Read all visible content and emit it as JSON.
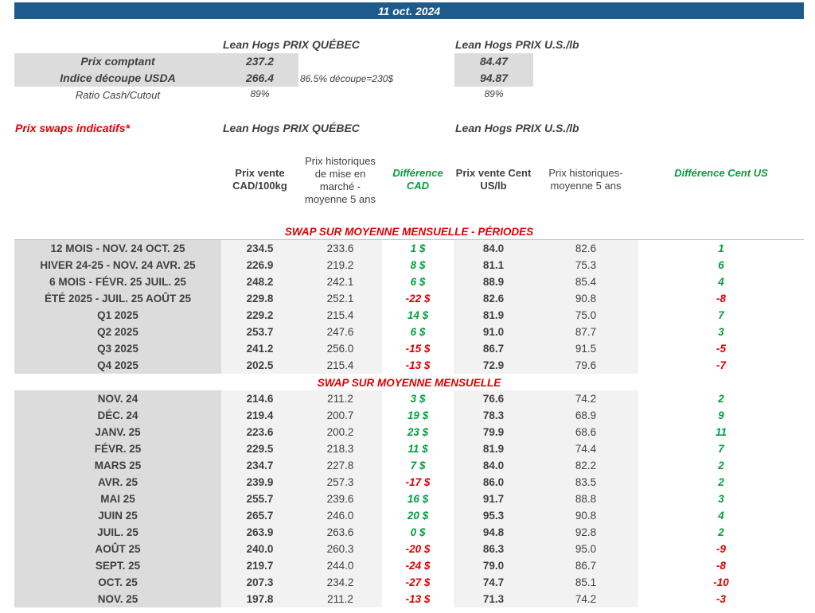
{
  "date": "11 oct. 2024",
  "cash": {
    "qc_title": "Lean Hogs PRIX QUÉBEC",
    "us_title": "Lean Hogs PRIX U.S./lb",
    "rows": [
      {
        "label": "Prix comptant",
        "qc": "237.2",
        "note": "",
        "us": "84.47"
      },
      {
        "label": "Indice découpe USDA",
        "qc": "266.4",
        "note": "86.5% découpe=230$",
        "us": "94.87"
      }
    ],
    "ratio_label": "Ratio Cash/Cutout",
    "ratio_qc": "89%",
    "ratio_us": "89%"
  },
  "swaps": {
    "title": "Prix swaps indicatifs*",
    "qc_title": "Lean Hogs PRIX QUÉBEC",
    "us_title": "Lean Hogs PRIX U.S./lb",
    "headers": [
      "Prix vente CAD/100kg",
      "Prix historiques de mise en marché - moyenne 5 ans",
      "Différence CAD",
      "Prix vente Cent US/lb",
      "Prix historiques- moyenne 5 ans",
      "Différence Cent US"
    ]
  },
  "sections": [
    {
      "title": "SWAP SUR MOYENNE MENSUELLE - PÉRIODES",
      "rows": [
        [
          "12 MOIS - NOV. 24 OCT. 25",
          "234.5",
          "233.6",
          "1 $",
          "84.0",
          "82.6",
          "1"
        ],
        [
          "HIVER 24-25 -  NOV. 24 AVR. 25",
          "226.9",
          "219.2",
          "8 $",
          "81.1",
          "75.3",
          "6"
        ],
        [
          "6 MOIS -  FÉVR. 25 JUIL. 25",
          "248.2",
          "242.1",
          "6 $",
          "88.9",
          "85.4",
          "4"
        ],
        [
          "ÉTÉ 2025 - JUIL. 25 AOÛT 25",
          "229.8",
          "252.1",
          "-22 $",
          "82.6",
          "90.8",
          "-8"
        ],
        [
          "Q1 2025",
          "229.2",
          "215.4",
          "14 $",
          "81.9",
          "75.0",
          "7"
        ],
        [
          "Q2 2025",
          "253.7",
          "247.6",
          "6 $",
          "91.0",
          "87.7",
          "3"
        ],
        [
          "Q3 2025",
          "241.2",
          "256.0",
          "-15 $",
          "86.7",
          "91.5",
          "-5"
        ],
        [
          "Q4 2025",
          "202.5",
          "215.4",
          "-13 $",
          "72.9",
          "79.6",
          "-7"
        ]
      ]
    },
    {
      "title": "SWAP SUR MOYENNE MENSUELLE",
      "rows": [
        [
          "NOV. 24",
          "214.6",
          "211.2",
          "3 $",
          "76.6",
          "74.2",
          "2"
        ],
        [
          "DÉC. 24",
          "219.4",
          "200.7",
          "19 $",
          "78.3",
          "68.9",
          "9"
        ],
        [
          "JANV. 25",
          "223.6",
          "200.2",
          "23 $",
          "79.9",
          "68.6",
          "11"
        ],
        [
          "FÉVR. 25",
          "229.5",
          "218.3",
          "11 $",
          "81.9",
          "74.4",
          "7"
        ],
        [
          "MARS 25",
          "234.7",
          "227.8",
          "7 $",
          "84.0",
          "82.2",
          "2"
        ],
        [
          "AVR. 25",
          "239.9",
          "257.3",
          "-17 $",
          "86.0",
          "83.5",
          "2"
        ],
        [
          "MAI 25",
          "255.7",
          "239.6",
          "16 $",
          "91.7",
          "88.8",
          "3"
        ],
        [
          "JUIN 25",
          "265.7",
          "246.0",
          "20 $",
          "95.3",
          "90.8",
          "4"
        ],
        [
          "JUIL. 25",
          "263.9",
          "263.6",
          "0 $",
          "94.8",
          "92.8",
          "2"
        ],
        [
          "AOÛT 25",
          "240.0",
          "260.3",
          "-20 $",
          "86.3",
          "95.0",
          "-9"
        ],
        [
          "SEPT. 25",
          "219.7",
          "244.0",
          "-24 $",
          "79.0",
          "86.7",
          "-8"
        ],
        [
          "OCT. 25",
          "207.3",
          "234.2",
          "-27 $",
          "74.7",
          "85.1",
          "-10"
        ],
        [
          "NOV. 25",
          "197.8",
          "211.2",
          "-13 $",
          "71.3",
          "74.2",
          "-3"
        ]
      ]
    }
  ],
  "colors": {
    "banner": "#1f5a8c",
    "positive": "#00a040",
    "negative": "#e00000"
  }
}
